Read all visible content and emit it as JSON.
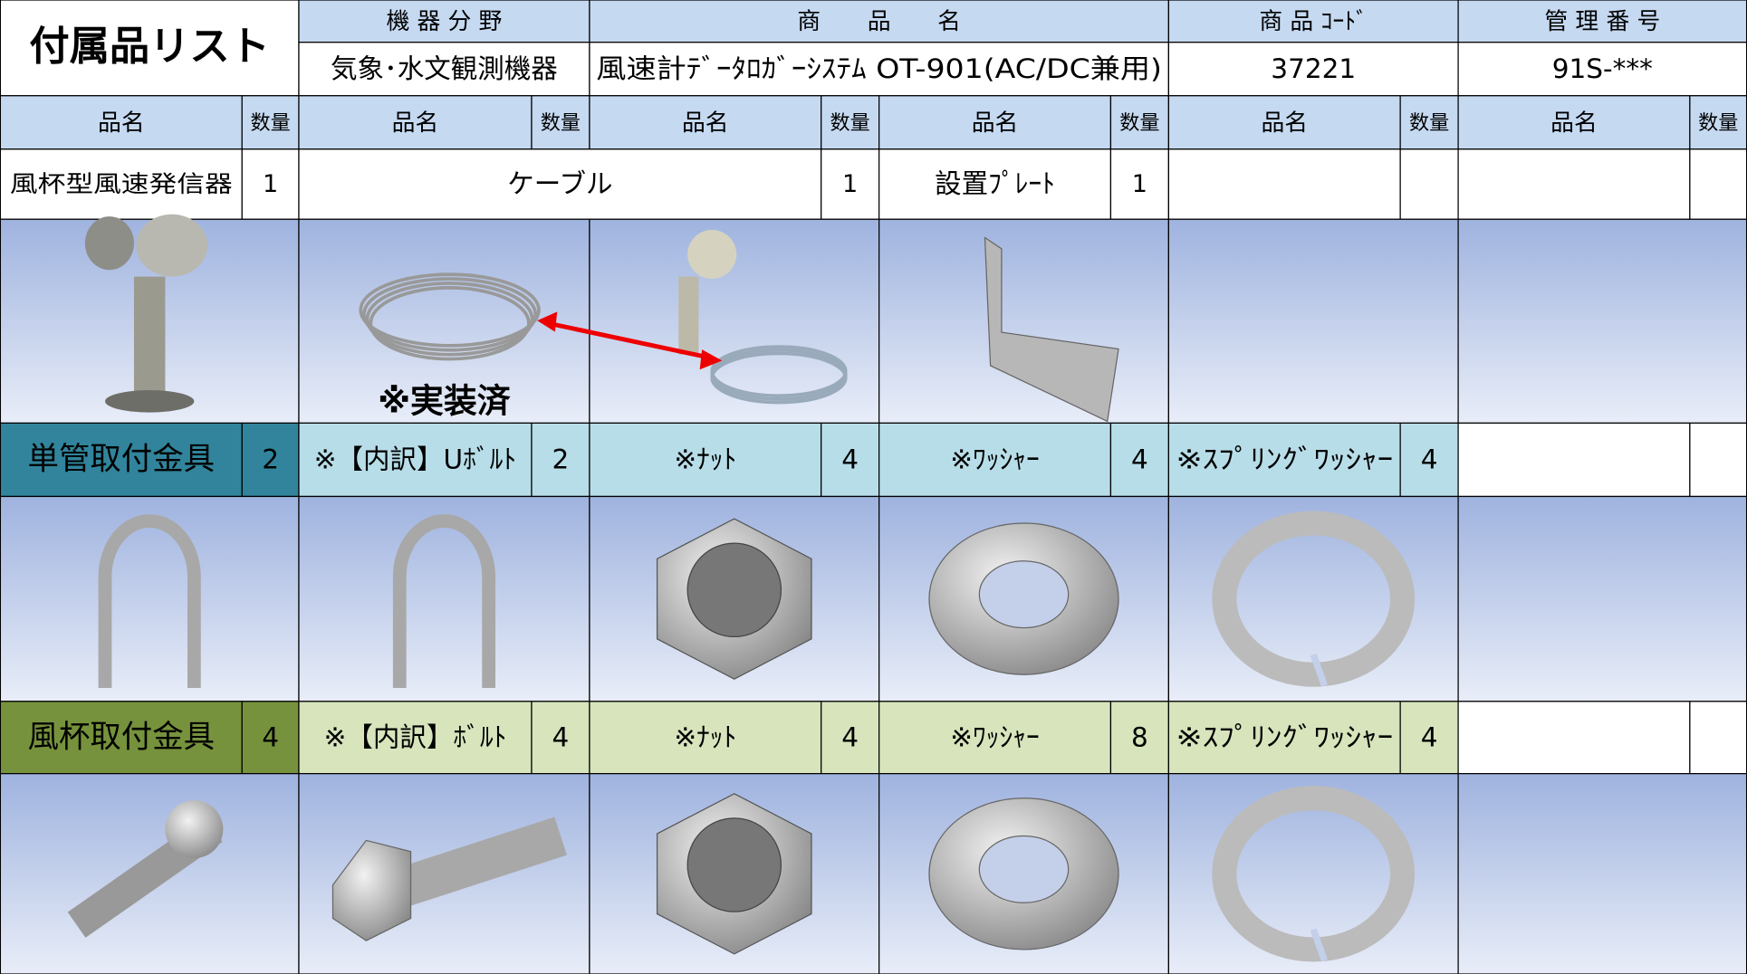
{
  "header": {
    "title": "付属品リスト",
    "fields": [
      {
        "label": "機 器 分 野",
        "value": "気象･水文観測機器"
      },
      {
        "label": "商　　品　　名",
        "value": "風速計ﾃﾞｰﾀﾛｶﾞｰｼｽﾃﾑ OT-901(AC/DC兼用)"
      },
      {
        "label": "商 品 ｺｰﾄﾞ",
        "value": "37221"
      },
      {
        "label": "管 理 番 号",
        "value": "91S-***"
      }
    ]
  },
  "columns": [
    {
      "name": "品名",
      "qty": "数量"
    },
    {
      "name": "品名",
      "qty": "数量"
    },
    {
      "name": "品名",
      "qty": "数量"
    },
    {
      "name": "品名",
      "qty": "数量"
    },
    {
      "name": "品名",
      "qty": "数量"
    },
    {
      "name": "品名",
      "qty": "数量"
    }
  ],
  "sections": [
    {
      "items": [
        {
          "name": "風杯型風速発信器",
          "qty": 1
        },
        {
          "name": "ケーブル",
          "qty": 1
        },
        {
          "name": "設置ﾌﾟﾚｰﾄ",
          "qty": 1
        }
      ],
      "note": "※実装済"
    },
    {
      "group": {
        "name": "単管取付金具",
        "qty": 2
      },
      "items": [
        {
          "name": "※【内訳】Uﾎﾞﾙﾄ",
          "qty": 2
        },
        {
          "name": "※ﾅｯﾄ",
          "qty": 4
        },
        {
          "name": "※ﾜｯｼｬｰ",
          "qty": 4
        },
        {
          "name": "※ｽﾌﾟﾘﾝｸﾞﾜｯｼｬｰ",
          "qty": 4
        }
      ]
    },
    {
      "group": {
        "name": "風杯取付金具",
        "qty": 4
      },
      "items": [
        {
          "name": "※【内訳】ﾎﾞﾙﾄ",
          "qty": 4
        },
        {
          "name": "※ﾅｯﾄ",
          "qty": 4
        },
        {
          "name": "※ﾜｯｼｬｰ",
          "qty": 8
        },
        {
          "name": "※ｽﾌﾟﾘﾝｸﾞﾜｯｼｬｰ",
          "qty": 4
        }
      ]
    }
  ]
}
